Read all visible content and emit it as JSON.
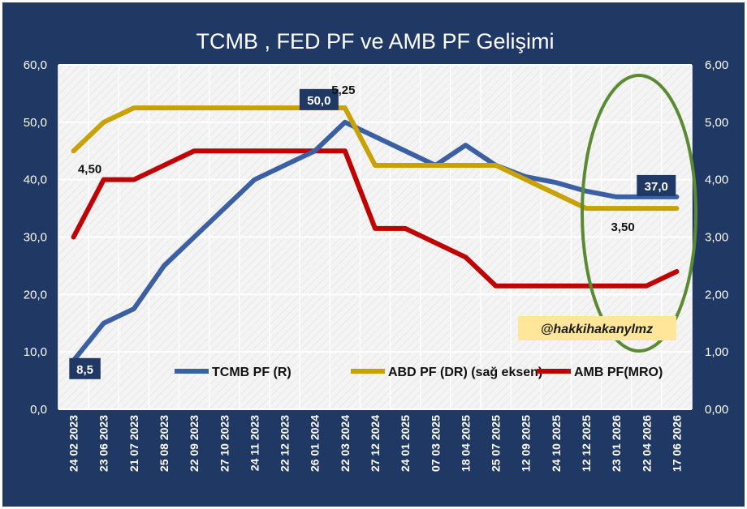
{
  "chart_data": {
    "type": "line",
    "title": "TCMB , FED PF ve AMB PF Gelişimi",
    "categories": [
      "24 02 2023",
      "23 06 2023",
      "21 07 2023",
      "25 08 2023",
      "22 09 2023",
      "27 10 2023",
      "24 11 2023",
      "22 12 2023",
      "26 01 2024",
      "22 03 2024",
      "27 12 2024",
      "24 01 2025",
      "07 03 2025",
      "18 04 2025",
      "25 07 2025",
      "12 09 2025",
      "24 10 2025",
      "12 12 2025",
      "23 01 2026",
      "22 04 2026",
      "17 06 2026"
    ],
    "y_left": {
      "ylim": [
        0,
        60
      ],
      "ticks": [
        "0,0",
        "10,0",
        "20,0",
        "30,0",
        "40,0",
        "50,0",
        "60,0"
      ]
    },
    "y_right": {
      "ylim": [
        0,
        6
      ],
      "ticks": [
        "0,00",
        "1,00",
        "2,00",
        "3,00",
        "4,00",
        "5,00",
        "6,00"
      ]
    },
    "grid": true,
    "legend_position": "bottom",
    "series": [
      {
        "name": "TCMB PF (R)",
        "axis": "left",
        "color": "#3b5fa3",
        "values": [
          8.5,
          15,
          17.5,
          25,
          30,
          35,
          40,
          42.5,
          45,
          50,
          47.5,
          45,
          42.5,
          46,
          42.5,
          40.5,
          39.5,
          38,
          37,
          37,
          37
        ]
      },
      {
        "name": "ABD PF (DR) (sağ eksen)",
        "axis": "right",
        "color": "#c9a100",
        "values": [
          4.5,
          5.0,
          5.25,
          5.25,
          5.25,
          5.25,
          5.25,
          5.25,
          5.25,
          5.25,
          4.25,
          4.25,
          4.25,
          4.25,
          4.25,
          4.0,
          3.75,
          3.5,
          3.5,
          3.5,
          3.5
        ]
      },
      {
        "name": "AMB PF(MRO)",
        "axis": "left",
        "color": "#c00000",
        "values": [
          30,
          40,
          40,
          42.5,
          45,
          45,
          45,
          45,
          45,
          45,
          31.5,
          31.5,
          29,
          26.5,
          21.5,
          21.5,
          21.5,
          21.5,
          21.5,
          21.5,
          24
        ]
      }
    ],
    "data_labels": [
      {
        "series": 0,
        "index": 0,
        "text": "8,5",
        "boxed": true
      },
      {
        "series": 0,
        "index": 9,
        "text": "50,0",
        "boxed": true
      },
      {
        "series": 0,
        "index": 19,
        "text": "37,0",
        "boxed": true
      },
      {
        "series": 1,
        "index": 0,
        "text": "4,50",
        "boxed": false
      },
      {
        "series": 1,
        "index": 9,
        "text": "5,25",
        "boxed": false
      },
      {
        "series": 1,
        "index": 18,
        "text": "3,50",
        "boxed": false
      }
    ],
    "annotations": [
      {
        "text": "@hakkihakanylmz",
        "background": "#ffe699"
      }
    ],
    "highlight_ellipse": {
      "color": "#5a8a32"
    }
  },
  "colors": {
    "frame": "#1f3864",
    "plot_bg": "#f7f7f7",
    "grid": "#ffffff"
  }
}
